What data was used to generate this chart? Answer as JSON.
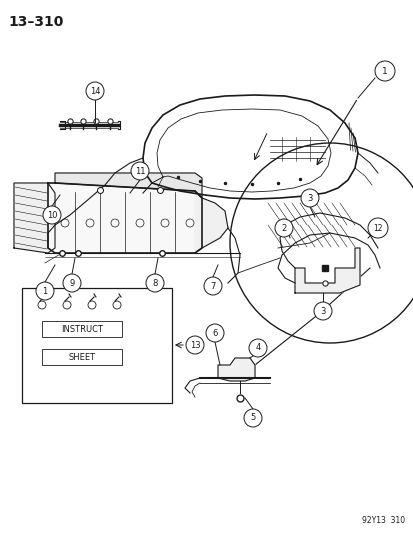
{
  "title": "13–310",
  "footer": "92Y13  310",
  "bg_color": "#ffffff",
  "figsize": [
    4.14,
    5.33
  ],
  "dpi": 100,
  "dark": "#1a1a1a",
  "gray": "#888888"
}
